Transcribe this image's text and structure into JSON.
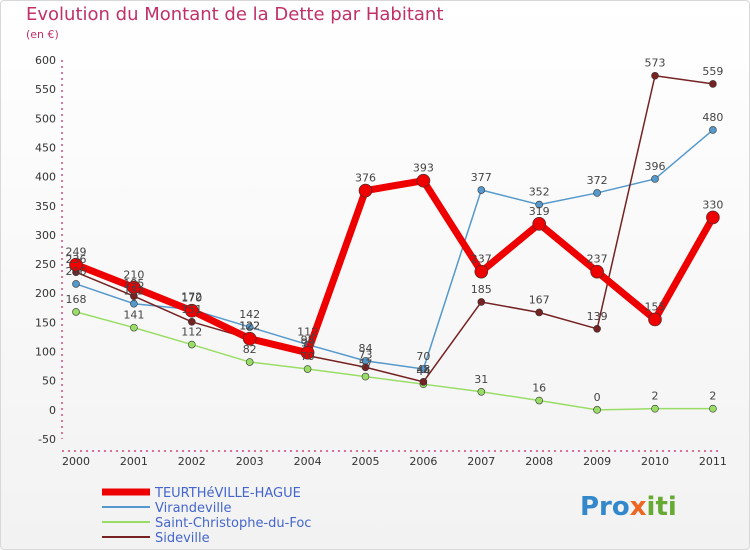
{
  "chart_data": {
    "type": "line",
    "title": "Evolution du Montant de la Dette par Habitant",
    "subtitle": "(en €)",
    "categories": [
      "2000",
      "2001",
      "2002",
      "2003",
      "2004",
      "2005",
      "2006",
      "2007",
      "2008",
      "2009",
      "2010",
      "2011"
    ],
    "ylim": [
      -50,
      600
    ],
    "yticks": [
      -50,
      0,
      50,
      100,
      150,
      200,
      250,
      300,
      350,
      400,
      450,
      500,
      550,
      600
    ],
    "grid": false,
    "legend_position": "bottom-left",
    "series": [
      {
        "name": "TEURTHéVILLE-HAGUE",
        "color": "#ee0000",
        "values": [
          249,
          210,
          170,
          122,
          98,
          376,
          393,
          237,
          319,
          237,
          155,
          330
        ]
      },
      {
        "name": "Virandeville",
        "color": "#5599cc",
        "values": [
          216,
          182,
          172,
          142,
          112,
          84,
          70,
          377,
          352,
          372,
          396,
          480
        ]
      },
      {
        "name": "Saint-Christophe-du-Foc",
        "color": "#99dd66",
        "values": [
          168,
          141,
          112,
          82,
          70,
          57,
          44,
          31,
          16,
          0,
          2,
          2
        ]
      },
      {
        "name": "Sideville",
        "color": "#772222",
        "values": [
          236,
          195,
          151,
          122,
          93,
          73,
          48,
          185,
          167,
          139,
          573,
          559
        ]
      }
    ]
  },
  "brand": {
    "parts": [
      "Pro",
      "x",
      "iti"
    ]
  }
}
